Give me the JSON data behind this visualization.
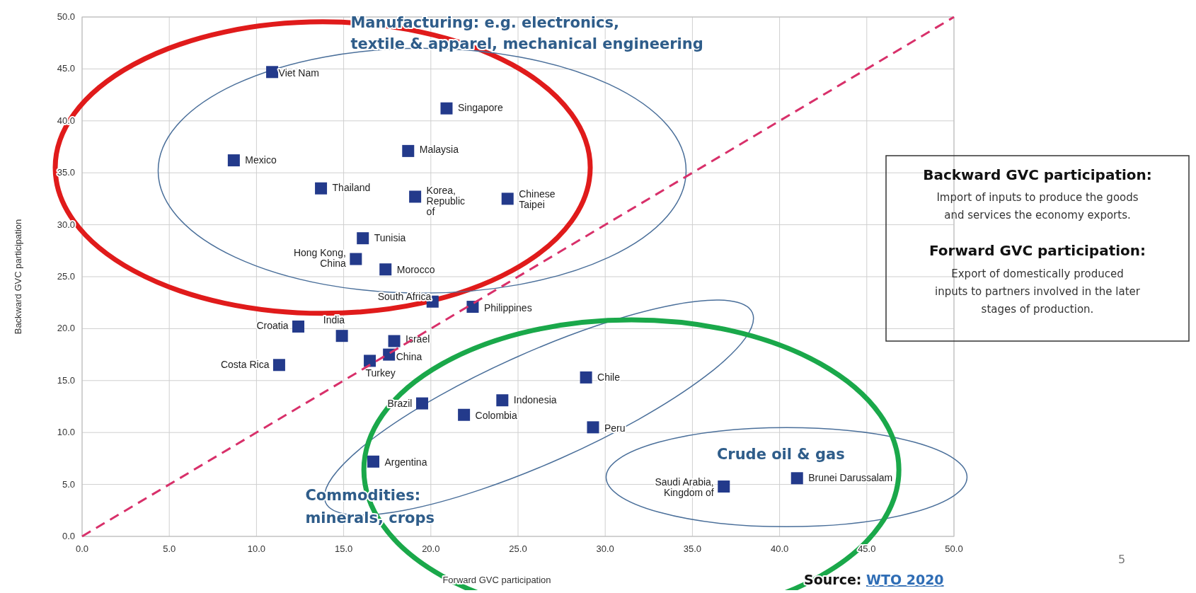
{
  "chart_data": {
    "type": "scatter",
    "xlabel": "Forward GVC participation",
    "ylabel": "Backward GVC participation",
    "xlim": [
      0,
      50
    ],
    "ylim": [
      0,
      50
    ],
    "xticks": [
      {
        "value": 0,
        "label": "0.0"
      },
      {
        "value": 5,
        "label": "5.0"
      },
      {
        "value": 10,
        "label": "10.0"
      },
      {
        "value": 15,
        "label": "15.0"
      },
      {
        "value": 20,
        "label": "20.0"
      },
      {
        "value": 25,
        "label": "25.0"
      },
      {
        "value": 30,
        "label": "30.0"
      },
      {
        "value": 35,
        "label": "35.0"
      },
      {
        "value": 40,
        "label": "40.0"
      },
      {
        "value": 45,
        "label": "45.0"
      },
      {
        "value": 50,
        "label": "50.0"
      }
    ],
    "yticks": [
      {
        "value": 0,
        "label": "0.0"
      },
      {
        "value": 5,
        "label": "5.0"
      },
      {
        "value": 10,
        "label": "10.0"
      },
      {
        "value": 15,
        "label": "15.0"
      },
      {
        "value": 20,
        "label": "20.0"
      },
      {
        "value": 25,
        "label": "25.0"
      },
      {
        "value": 30,
        "label": "30.0"
      },
      {
        "value": 35,
        "label": "35.0"
      },
      {
        "value": 40,
        "label": "40.0"
      },
      {
        "value": 45,
        "label": "45.0"
      },
      {
        "value": 50,
        "label": "50.0"
      }
    ],
    "grid": true,
    "marker": "square",
    "legend": false,
    "series": [
      {
        "name": "Viet Nam",
        "color": "#233a8b",
        "x": [
          10.9
        ],
        "values": [
          44.7
        ]
      },
      {
        "name": "Singapore",
        "color": "#233a8b",
        "x": [
          20.9
        ],
        "values": [
          41.2
        ]
      },
      {
        "name": "Malaysia",
        "color": "#233a8b",
        "x": [
          18.7
        ],
        "values": [
          37.1
        ]
      },
      {
        "name": "Mexico",
        "color": "#233a8b",
        "x": [
          8.7
        ],
        "values": [
          36.2
        ]
      },
      {
        "name": "Thailand",
        "color": "#233a8b",
        "x": [
          13.7
        ],
        "values": [
          33.5
        ]
      },
      {
        "name": "Korea, Republic of",
        "color": "#233a8b",
        "x": [
          19.1
        ],
        "values": [
          32.7
        ]
      },
      {
        "name": "Chinese Taipei",
        "color": "#233a8b",
        "x": [
          24.4
        ],
        "values": [
          32.5
        ]
      },
      {
        "name": "Tunisia",
        "color": "#233a8b",
        "x": [
          16.1
        ],
        "values": [
          28.7
        ]
      },
      {
        "name": "Hong Kong, China",
        "color": "#233a8b",
        "x": [
          15.7
        ],
        "values": [
          26.7
        ]
      },
      {
        "name": "Morocco",
        "color": "#233a8b",
        "x": [
          17.4
        ],
        "values": [
          25.7
        ]
      },
      {
        "name": "South Africa",
        "color": "#233a8b",
        "x": [
          20.1
        ],
        "values": [
          22.6
        ]
      },
      {
        "name": "Philippines",
        "color": "#233a8b",
        "x": [
          22.4
        ],
        "values": [
          22.1
        ]
      },
      {
        "name": "Croatia",
        "color": "#233a8b",
        "x": [
          12.4
        ],
        "values": [
          20.2
        ]
      },
      {
        "name": "India",
        "color": "#233a8b",
        "x": [
          14.9
        ],
        "values": [
          19.3
        ]
      },
      {
        "name": "Israel",
        "color": "#233a8b",
        "x": [
          17.9
        ],
        "values": [
          18.8
        ]
      },
      {
        "name": "China",
        "color": "#233a8b",
        "x": [
          17.6
        ],
        "values": [
          17.5
        ]
      },
      {
        "name": "Turkey",
        "color": "#233a8b",
        "x": [
          16.5
        ],
        "values": [
          16.9
        ]
      },
      {
        "name": "Costa Rica",
        "color": "#233a8b",
        "x": [
          11.3
        ],
        "values": [
          16.5
        ]
      },
      {
        "name": "Chile",
        "color": "#233a8b",
        "x": [
          28.9
        ],
        "values": [
          15.3
        ]
      },
      {
        "name": "Brazil",
        "color": "#233a8b",
        "x": [
          19.5
        ],
        "values": [
          12.8
        ]
      },
      {
        "name": "Indonesia",
        "color": "#233a8b",
        "x": [
          24.1
        ],
        "values": [
          13.1
        ]
      },
      {
        "name": "Colombia",
        "color": "#233a8b",
        "x": [
          21.9
        ],
        "values": [
          11.7
        ]
      },
      {
        "name": "Peru",
        "color": "#233a8b",
        "x": [
          29.3
        ],
        "values": [
          10.5
        ]
      },
      {
        "name": "Argentina",
        "color": "#233a8b",
        "x": [
          16.7
        ],
        "values": [
          7.2
        ]
      },
      {
        "name": "Saudi Arabia, Kingdom of",
        "color": "#233a8b",
        "x": [
          36.8
        ],
        "values": [
          4.8
        ]
      },
      {
        "name": "Brunei Darussalam",
        "color": "#233a8b",
        "x": [
          41.0
        ],
        "values": [
          5.6
        ]
      },
      {
        "type": "line",
        "color": "#d8306a",
        "line_style": "dashed",
        "marker": "none",
        "x": [
          0,
          50
        ],
        "values": [
          0,
          50
        ]
      }
    ],
    "annotations": [
      "Manufacturing: e.g. electronics,\ntextile & apparel, mechanical engineering",
      "Commodities:\nminerals, crops",
      "Crude oil & gas",
      "Backward GVC participation:",
      "Import of inputs to produce the goods\nand services the economy exports.",
      "Forward GVC participation:",
      "Export of domestically produced\ninputs to partners involved in the later\nstages of production.",
      "Source: WTO 2020",
      "5"
    ]
  }
}
